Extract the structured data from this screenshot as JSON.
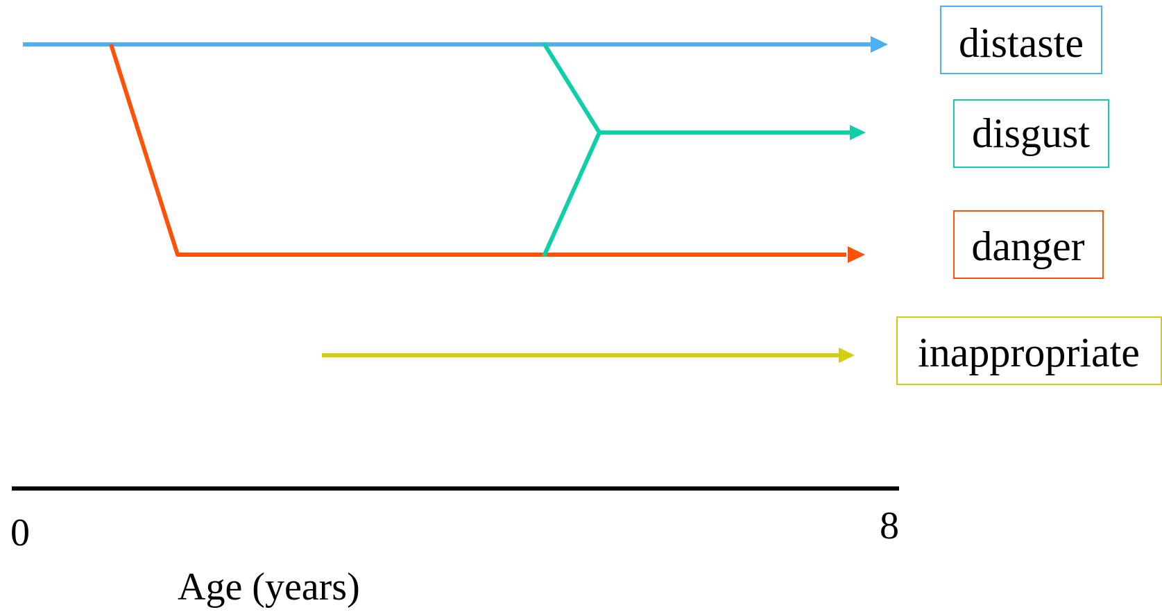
{
  "lines": {
    "distaste": {
      "label": "distaste",
      "color": "#4BB0F5"
    },
    "disgust": {
      "label": "disgust",
      "color": "#0FCFA8"
    },
    "danger": {
      "label": "danger",
      "color": "#FF5208"
    },
    "inappropriate": {
      "label": "inappropriate",
      "color": "#D4CC0C"
    }
  },
  "axis": {
    "start_label": "0",
    "end_label": "8",
    "title": "Age (years)",
    "color": "#000000"
  }
}
